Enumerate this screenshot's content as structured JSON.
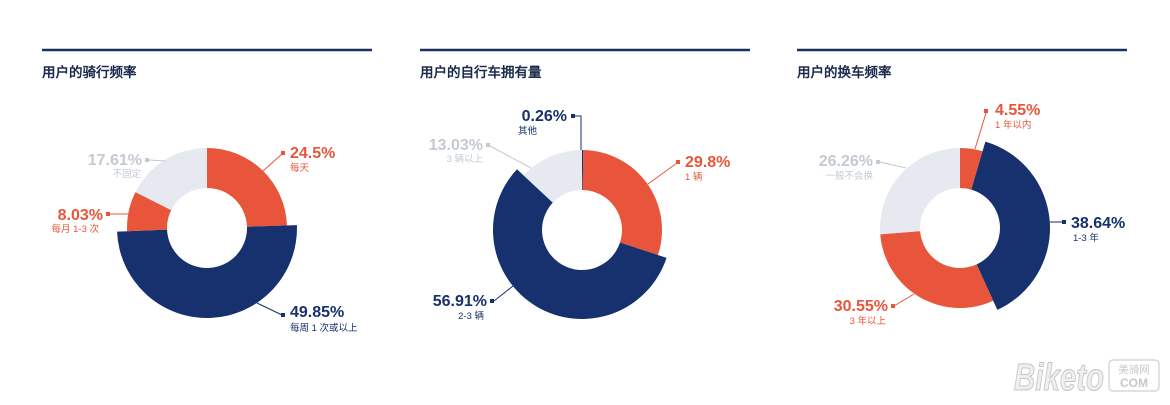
{
  "colors": {
    "orange": "#E8553A",
    "navy": "#16316D",
    "gray": "#E6E9EF",
    "gray_label": "#C4C9D2",
    "title": "#1B2A4C",
    "rule": "#1C3062"
  },
  "chart_data": [
    {
      "type": "pie",
      "donut": true,
      "title": "用户的骑行频率",
      "slices": [
        {
          "label": "每天",
          "value": 24.5,
          "value_label": "24.5%",
          "color": "orange"
        },
        {
          "label": "每周 1 次或以上",
          "value": 49.85,
          "value_label": "49.85%",
          "color": "navy"
        },
        {
          "label": "每月 1-3 次",
          "value": 8.03,
          "value_label": "8.03%",
          "color": "orange"
        },
        {
          "label": "不固定",
          "value": 17.61,
          "value_label": "17.61%",
          "color": "gray"
        }
      ]
    },
    {
      "type": "pie",
      "donut": true,
      "title": "用户的自行车拥有量",
      "slices": [
        {
          "label": "其他",
          "value": 0.26,
          "value_label": "0.26%",
          "color": "navy"
        },
        {
          "label": "1 辆",
          "value": 29.8,
          "value_label": "29.8%",
          "color": "orange"
        },
        {
          "label": "2-3 辆",
          "value": 56.91,
          "value_label": "56.91%",
          "color": "navy"
        },
        {
          "label": "3 辆以上",
          "value": 13.03,
          "value_label": "13.03%",
          "color": "gray"
        }
      ]
    },
    {
      "type": "pie",
      "donut": true,
      "title": "用户的换车频率",
      "slices": [
        {
          "label": "1 年以内",
          "value": 4.55,
          "value_label": "4.55%",
          "color": "orange"
        },
        {
          "label": "1-3 年",
          "value": 38.64,
          "value_label": "38.64%",
          "color": "navy"
        },
        {
          "label": "3 年以上",
          "value": 30.55,
          "value_label": "30.55%",
          "color": "orange"
        },
        {
          "label": "一般不会换",
          "value": 26.26,
          "value_label": "26.26%",
          "color": "gray"
        }
      ]
    }
  ],
  "watermark": {
    "brand": "Biketo",
    "site_name": "美骑网",
    "domain": "COM"
  }
}
